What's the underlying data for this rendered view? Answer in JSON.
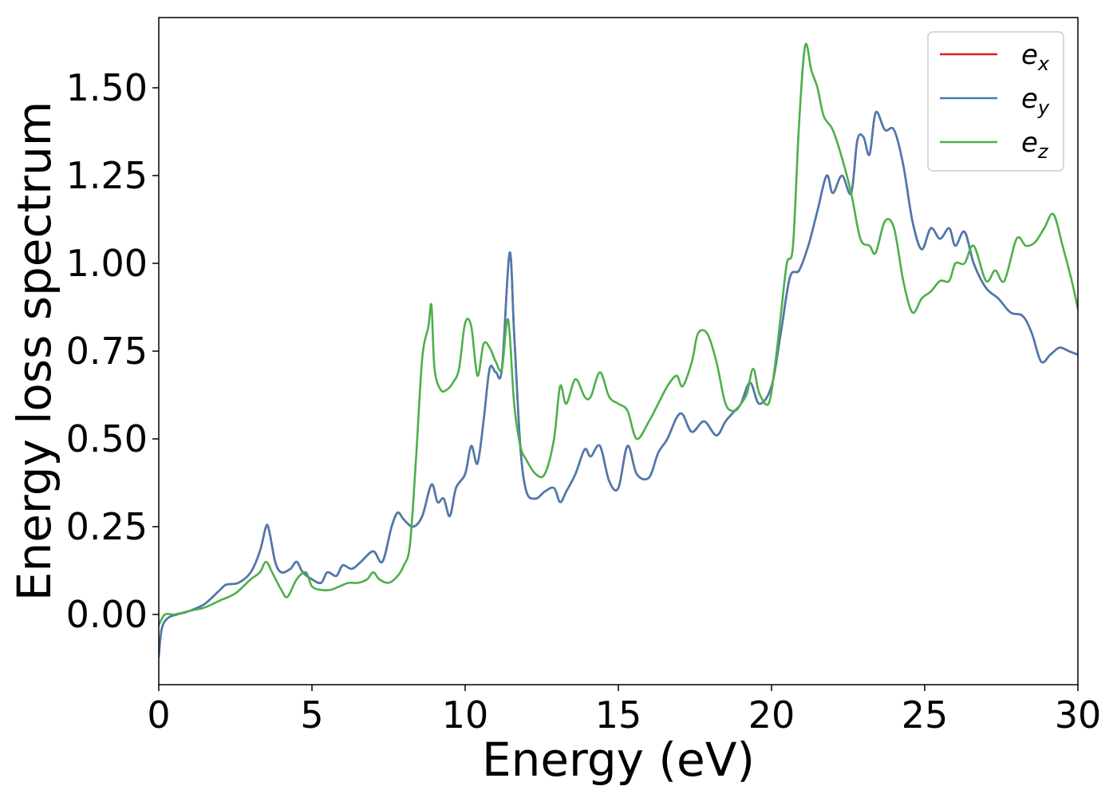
{
  "chart_data": {
    "type": "line",
    "title": "",
    "xlabel": "Energy (eV)",
    "ylabel": "Energy loss spectrum",
    "xlim": [
      0,
      30
    ],
    "ylim": [
      -0.2,
      1.7
    ],
    "xticks": [
      0,
      5,
      10,
      15,
      20,
      25,
      30
    ],
    "yticks": [
      0.0,
      0.25,
      0.5,
      0.75,
      1.0,
      1.25,
      1.5
    ],
    "xtick_labels": [
      "0",
      "5",
      "10",
      "15",
      "20",
      "25",
      "30"
    ],
    "ytick_labels": [
      "0.00",
      "0.25",
      "0.50",
      "0.75",
      "1.00",
      "1.25",
      "1.50"
    ],
    "grid": false,
    "legend_position": "top-right",
    "series": [
      {
        "name": "e",
        "subscript": "x",
        "color": "#e41a1c",
        "x": [
          0,
          0.1,
          0.3,
          0.6,
          1.0,
          1.5,
          2.0,
          2.2,
          2.6,
          3.0,
          3.3,
          3.5,
          3.6,
          3.8,
          4.0,
          4.3,
          4.5,
          4.7,
          5.0,
          5.3,
          5.5,
          5.8,
          6.0,
          6.3,
          6.6,
          7.0,
          7.3,
          7.6,
          7.8,
          8.0,
          8.3,
          8.6,
          8.9,
          9.1,
          9.3,
          9.5,
          9.7,
          10.0,
          10.2,
          10.4,
          10.6,
          10.8,
          11.0,
          11.2,
          11.45,
          11.6,
          11.8,
          12.0,
          12.3,
          12.6,
          12.9,
          13.1,
          13.3,
          13.6,
          13.9,
          14.1,
          14.4,
          14.7,
          15.0,
          15.3,
          15.6,
          16.0,
          16.3,
          16.6,
          16.9,
          17.1,
          17.4,
          17.8,
          18.2,
          18.5,
          18.8,
          19.0,
          19.3,
          19.6,
          20.0,
          20.3,
          20.6,
          20.9,
          21.2,
          21.5,
          21.8,
          22.0,
          22.3,
          22.6,
          22.8,
          23.0,
          23.2,
          23.4,
          23.7,
          24.0,
          24.3,
          24.6,
          24.9,
          25.2,
          25.5,
          25.8,
          26.0,
          26.3,
          26.6,
          27.0,
          27.4,
          27.8,
          28.2,
          28.5,
          28.8,
          29.1,
          29.4,
          29.7,
          30.0
        ],
        "y": [
          -0.12,
          -0.04,
          -0.01,
          0.0,
          0.01,
          0.03,
          0.07,
          0.085,
          0.09,
          0.12,
          0.18,
          0.25,
          0.24,
          0.15,
          0.12,
          0.13,
          0.15,
          0.12,
          0.1,
          0.09,
          0.12,
          0.11,
          0.14,
          0.13,
          0.15,
          0.18,
          0.15,
          0.25,
          0.29,
          0.27,
          0.25,
          0.28,
          0.37,
          0.32,
          0.33,
          0.28,
          0.36,
          0.4,
          0.48,
          0.43,
          0.55,
          0.7,
          0.69,
          0.7,
          1.03,
          0.8,
          0.48,
          0.35,
          0.33,
          0.35,
          0.36,
          0.32,
          0.35,
          0.4,
          0.47,
          0.45,
          0.48,
          0.38,
          0.36,
          0.48,
          0.4,
          0.39,
          0.46,
          0.5,
          0.56,
          0.57,
          0.52,
          0.55,
          0.51,
          0.55,
          0.58,
          0.6,
          0.66,
          0.6,
          0.65,
          0.8,
          0.96,
          0.98,
          1.05,
          1.15,
          1.25,
          1.2,
          1.25,
          1.2,
          1.35,
          1.36,
          1.31,
          1.43,
          1.38,
          1.38,
          1.28,
          1.12,
          1.04,
          1.1,
          1.07,
          1.1,
          1.05,
          1.09,
          1.0,
          0.93,
          0.9,
          0.86,
          0.85,
          0.8,
          0.72,
          0.74,
          0.76,
          0.75,
          0.74
        ]
      },
      {
        "name": "e",
        "subscript": "y",
        "color": "#4a7bb0",
        "x": [
          0,
          0.1,
          0.3,
          0.6,
          1.0,
          1.5,
          2.0,
          2.2,
          2.6,
          3.0,
          3.3,
          3.5,
          3.6,
          3.8,
          4.0,
          4.3,
          4.5,
          4.7,
          5.0,
          5.3,
          5.5,
          5.8,
          6.0,
          6.3,
          6.6,
          7.0,
          7.3,
          7.6,
          7.8,
          8.0,
          8.3,
          8.6,
          8.9,
          9.1,
          9.3,
          9.5,
          9.7,
          10.0,
          10.2,
          10.4,
          10.6,
          10.8,
          11.0,
          11.2,
          11.45,
          11.6,
          11.8,
          12.0,
          12.3,
          12.6,
          12.9,
          13.1,
          13.3,
          13.6,
          13.9,
          14.1,
          14.4,
          14.7,
          15.0,
          15.3,
          15.6,
          16.0,
          16.3,
          16.6,
          16.9,
          17.1,
          17.4,
          17.8,
          18.2,
          18.5,
          18.8,
          19.0,
          19.3,
          19.6,
          20.0,
          20.3,
          20.6,
          20.9,
          21.2,
          21.5,
          21.8,
          22.0,
          22.3,
          22.6,
          22.8,
          23.0,
          23.2,
          23.4,
          23.7,
          24.0,
          24.3,
          24.6,
          24.9,
          25.2,
          25.5,
          25.8,
          26.0,
          26.3,
          26.6,
          27.0,
          27.4,
          27.8,
          28.2,
          28.5,
          28.8,
          29.1,
          29.4,
          29.7,
          30.0
        ],
        "y": [
          -0.12,
          -0.04,
          -0.01,
          0.0,
          0.01,
          0.03,
          0.07,
          0.085,
          0.09,
          0.12,
          0.18,
          0.25,
          0.24,
          0.15,
          0.12,
          0.13,
          0.15,
          0.12,
          0.1,
          0.09,
          0.12,
          0.11,
          0.14,
          0.13,
          0.15,
          0.18,
          0.15,
          0.25,
          0.29,
          0.27,
          0.25,
          0.28,
          0.37,
          0.32,
          0.33,
          0.28,
          0.36,
          0.4,
          0.48,
          0.43,
          0.55,
          0.7,
          0.69,
          0.7,
          1.03,
          0.8,
          0.48,
          0.35,
          0.33,
          0.35,
          0.36,
          0.32,
          0.35,
          0.4,
          0.47,
          0.45,
          0.48,
          0.38,
          0.36,
          0.48,
          0.4,
          0.39,
          0.46,
          0.5,
          0.56,
          0.57,
          0.52,
          0.55,
          0.51,
          0.55,
          0.58,
          0.6,
          0.66,
          0.6,
          0.65,
          0.8,
          0.96,
          0.98,
          1.05,
          1.15,
          1.25,
          1.2,
          1.25,
          1.2,
          1.35,
          1.36,
          1.31,
          1.43,
          1.38,
          1.38,
          1.28,
          1.12,
          1.04,
          1.1,
          1.07,
          1.1,
          1.05,
          1.09,
          1.0,
          0.93,
          0.9,
          0.86,
          0.85,
          0.8,
          0.72,
          0.74,
          0.76,
          0.75,
          0.74
        ]
      },
      {
        "name": "e",
        "subscript": "z",
        "color": "#4daf4a",
        "x": [
          0,
          0.2,
          0.5,
          1.0,
          1.5,
          2.0,
          2.5,
          3.0,
          3.3,
          3.5,
          3.7,
          4.0,
          4.2,
          4.5,
          4.8,
          5.0,
          5.3,
          5.6,
          5.9,
          6.2,
          6.5,
          6.8,
          7.0,
          7.2,
          7.5,
          7.8,
          8.0,
          8.2,
          8.4,
          8.6,
          8.8,
          8.9,
          9.0,
          9.2,
          9.4,
          9.6,
          9.8,
          10.0,
          10.2,
          10.4,
          10.6,
          10.8,
          11.0,
          11.2,
          11.4,
          11.6,
          11.8,
          12.0,
          12.3,
          12.6,
          12.9,
          13.1,
          13.3,
          13.6,
          13.9,
          14.1,
          14.4,
          14.7,
          15.0,
          15.3,
          15.6,
          16.0,
          16.3,
          16.6,
          16.9,
          17.1,
          17.4,
          17.6,
          17.9,
          18.2,
          18.5,
          18.8,
          19.0,
          19.2,
          19.4,
          19.6,
          19.9,
          20.1,
          20.3,
          20.5,
          20.7,
          20.9,
          21.1,
          21.3,
          21.5,
          21.7,
          22.0,
          22.3,
          22.6,
          22.9,
          23.2,
          23.4,
          23.7,
          24.0,
          24.3,
          24.6,
          24.9,
          25.2,
          25.5,
          25.8,
          26.0,
          26.3,
          26.6,
          27.0,
          27.3,
          27.6,
          28.0,
          28.3,
          28.6,
          28.9,
          29.2,
          29.5,
          29.8,
          30.0
        ],
        "y": [
          -0.03,
          0.0,
          0.0,
          0.01,
          0.02,
          0.04,
          0.06,
          0.1,
          0.12,
          0.15,
          0.12,
          0.07,
          0.05,
          0.1,
          0.12,
          0.08,
          0.07,
          0.07,
          0.08,
          0.09,
          0.09,
          0.1,
          0.12,
          0.1,
          0.09,
          0.11,
          0.14,
          0.2,
          0.45,
          0.73,
          0.82,
          0.88,
          0.7,
          0.64,
          0.64,
          0.66,
          0.7,
          0.83,
          0.82,
          0.68,
          0.77,
          0.76,
          0.72,
          0.7,
          0.84,
          0.6,
          0.48,
          0.44,
          0.4,
          0.4,
          0.5,
          0.65,
          0.6,
          0.67,
          0.62,
          0.62,
          0.69,
          0.62,
          0.6,
          0.58,
          0.5,
          0.55,
          0.6,
          0.65,
          0.68,
          0.65,
          0.72,
          0.8,
          0.8,
          0.72,
          0.6,
          0.58,
          0.6,
          0.63,
          0.7,
          0.63,
          0.6,
          0.7,
          0.85,
          1.0,
          1.05,
          1.4,
          1.62,
          1.55,
          1.5,
          1.42,
          1.38,
          1.3,
          1.2,
          1.07,
          1.05,
          1.03,
          1.12,
          1.1,
          0.95,
          0.86,
          0.9,
          0.92,
          0.95,
          0.95,
          1.0,
          1.0,
          1.05,
          0.95,
          0.98,
          0.95,
          1.07,
          1.05,
          1.06,
          1.1,
          1.14,
          1.05,
          0.95,
          0.87
        ]
      }
    ]
  }
}
